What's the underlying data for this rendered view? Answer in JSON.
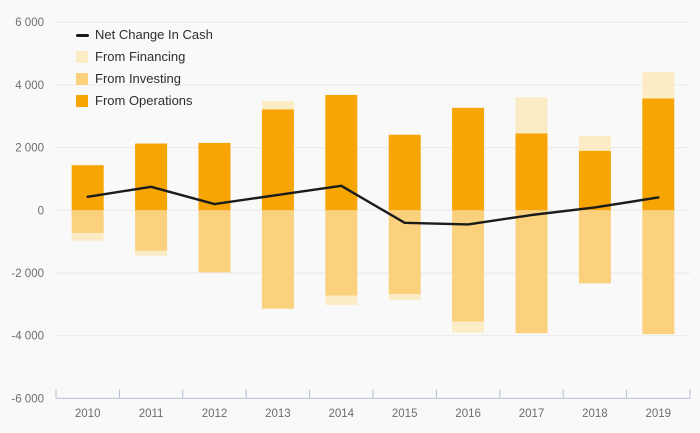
{
  "chart_data": {
    "type": "bar",
    "subtype": "stacked-bar-with-line",
    "title": "",
    "xlabel": "",
    "ylabel": "",
    "categories": [
      "2010",
      "2011",
      "2012",
      "2013",
      "2014",
      "2015",
      "2016",
      "2017",
      "2018",
      "2019"
    ],
    "series": [
      {
        "name": "Net Change In Cash",
        "type": "line",
        "color": "#1b1b1b",
        "values": [
          430,
          750,
          200,
          490,
          780,
          -400,
          -450,
          -150,
          90,
          410
        ]
      },
      {
        "name": "From Financing",
        "type": "bar",
        "color": "#FCECC6",
        "values": [
          -240,
          -160,
          0,
          270,
          -300,
          -190,
          -350,
          1160,
          470,
          840
        ]
      },
      {
        "name": "From Investing",
        "type": "bar",
        "color": "#FBD17E",
        "values": [
          -730,
          -1290,
          -1980,
          -3140,
          -2720,
          -2670,
          -3550,
          -3920,
          -2330,
          -3950
        ]
      },
      {
        "name": "From Operations",
        "type": "bar",
        "color": "#F6A502",
        "values": [
          1440,
          2130,
          2150,
          3220,
          3680,
          2410,
          3270,
          2450,
          1900,
          3570
        ]
      }
    ],
    "stacked": true,
    "ylim": [
      -6000,
      6000
    ],
    "ytick_values": [
      6000,
      4000,
      2000,
      0,
      -2000,
      -4000,
      -6000
    ],
    "ytick_labels": [
      "6 000",
      "4 000",
      "2 000",
      "0",
      "-2 000",
      "-4 000",
      "-6 000"
    ],
    "legend_position": "top-left",
    "grid": true,
    "colors": {
      "background": "#f9f9f9",
      "gridline": "#e9e9eb",
      "axis_line": "#b7c0d6",
      "tick_label": "#6d6d6d",
      "legend_text": "#2d2d2d"
    }
  }
}
